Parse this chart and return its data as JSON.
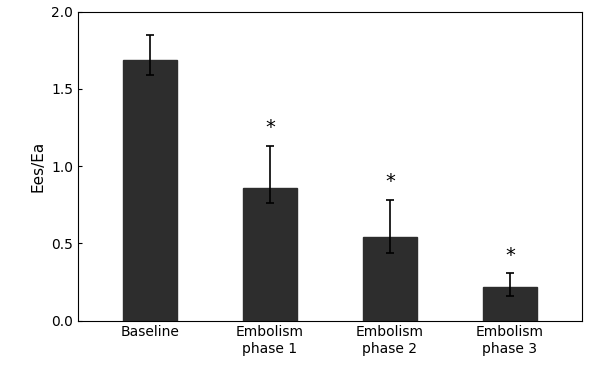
{
  "categories": [
    "Baseline",
    "Embolism\nphase 1",
    "Embolism\nphase 2",
    "Embolism\nphase 3"
  ],
  "values": [
    1.69,
    0.86,
    0.54,
    0.22
  ],
  "errors_upper": [
    0.16,
    0.27,
    0.24,
    0.09
  ],
  "errors_lower": [
    0.1,
    0.1,
    0.1,
    0.06
  ],
  "bar_color": "#2d2d2d",
  "bar_width": 0.45,
  "ylabel": "Ees/Ea",
  "ylim": [
    0,
    2
  ],
  "yticks": [
    0,
    0.5,
    1,
    1.5,
    2
  ],
  "significance": [
    false,
    true,
    true,
    true
  ],
  "asterisk_offsets": [
    0.06,
    0.06,
    0.06,
    0.05
  ],
  "background_color": "#ffffff",
  "tick_fontsize": 10,
  "label_fontsize": 11,
  "asterisk_fontsize": 14
}
